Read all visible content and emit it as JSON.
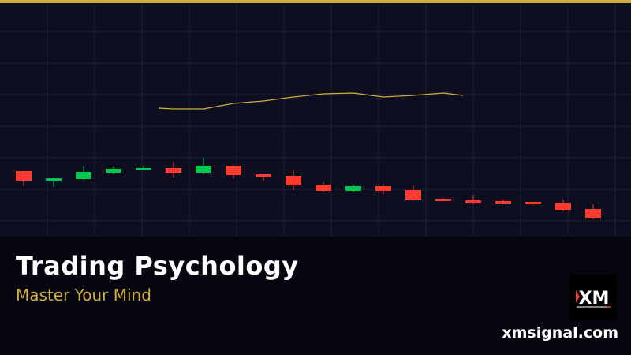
{
  "colors": {
    "accent": "#d4af37",
    "up": "#00c853",
    "down": "#ff3b30",
    "background": "#0d0f20"
  },
  "title": "Trading Psychology",
  "subtitle": "Master Your Mind",
  "logo": {
    "text": "XM"
  },
  "website": "xmsignal.com",
  "chart_data": {
    "type": "candlestick",
    "grid": true,
    "candles": [
      {
        "o": 83,
        "h": 83,
        "l": 64,
        "c": 71
      },
      {
        "o": 71,
        "h": 75,
        "l": 63,
        "c": 74
      },
      {
        "o": 73,
        "h": 89,
        "l": 72,
        "c": 82
      },
      {
        "o": 81,
        "h": 89,
        "l": 79,
        "c": 86
      },
      {
        "o": 84,
        "h": 89,
        "l": 84,
        "c": 87
      },
      {
        "o": 87,
        "h": 95,
        "l": 75,
        "c": 81
      },
      {
        "o": 81,
        "h": 100,
        "l": 79,
        "c": 90
      },
      {
        "o": 90,
        "h": 91,
        "l": 74,
        "c": 78
      },
      {
        "o": 79,
        "h": 79,
        "l": 71,
        "c": 76
      },
      {
        "o": 77,
        "h": 84,
        "l": 59,
        "c": 65
      },
      {
        "o": 66,
        "h": 69,
        "l": 56,
        "c": 58
      },
      {
        "o": 58,
        "h": 66,
        "l": 56,
        "c": 64
      },
      {
        "o": 64,
        "h": 67,
        "l": 54,
        "c": 58
      },
      {
        "o": 59,
        "h": 65,
        "l": 46,
        "c": 47
      },
      {
        "o": 48,
        "h": 49,
        "l": 45,
        "c": 45
      },
      {
        "o": 46,
        "h": 53,
        "l": 41,
        "c": 43
      },
      {
        "o": 45,
        "h": 47,
        "l": 41,
        "c": 42
      },
      {
        "o": 44,
        "h": 44,
        "l": 40,
        "c": 41
      },
      {
        "o": 43,
        "h": 47,
        "l": 32,
        "c": 34
      },
      {
        "o": 35,
        "h": 41,
        "l": 22,
        "c": 24
      }
    ],
    "moving_average": [
      {
        "i": 4.5,
        "v": 163
      },
      {
        "i": 5,
        "v": 162
      },
      {
        "i": 6,
        "v": 162
      },
      {
        "i": 7,
        "v": 169
      },
      {
        "i": 8,
        "v": 172
      },
      {
        "i": 9,
        "v": 177
      },
      {
        "i": 10,
        "v": 181
      },
      {
        "i": 11,
        "v": 182
      },
      {
        "i": 12,
        "v": 177
      },
      {
        "i": 13,
        "v": 179
      },
      {
        "i": 14,
        "v": 182
      },
      {
        "i": 14.66,
        "v": 179
      }
    ]
  }
}
